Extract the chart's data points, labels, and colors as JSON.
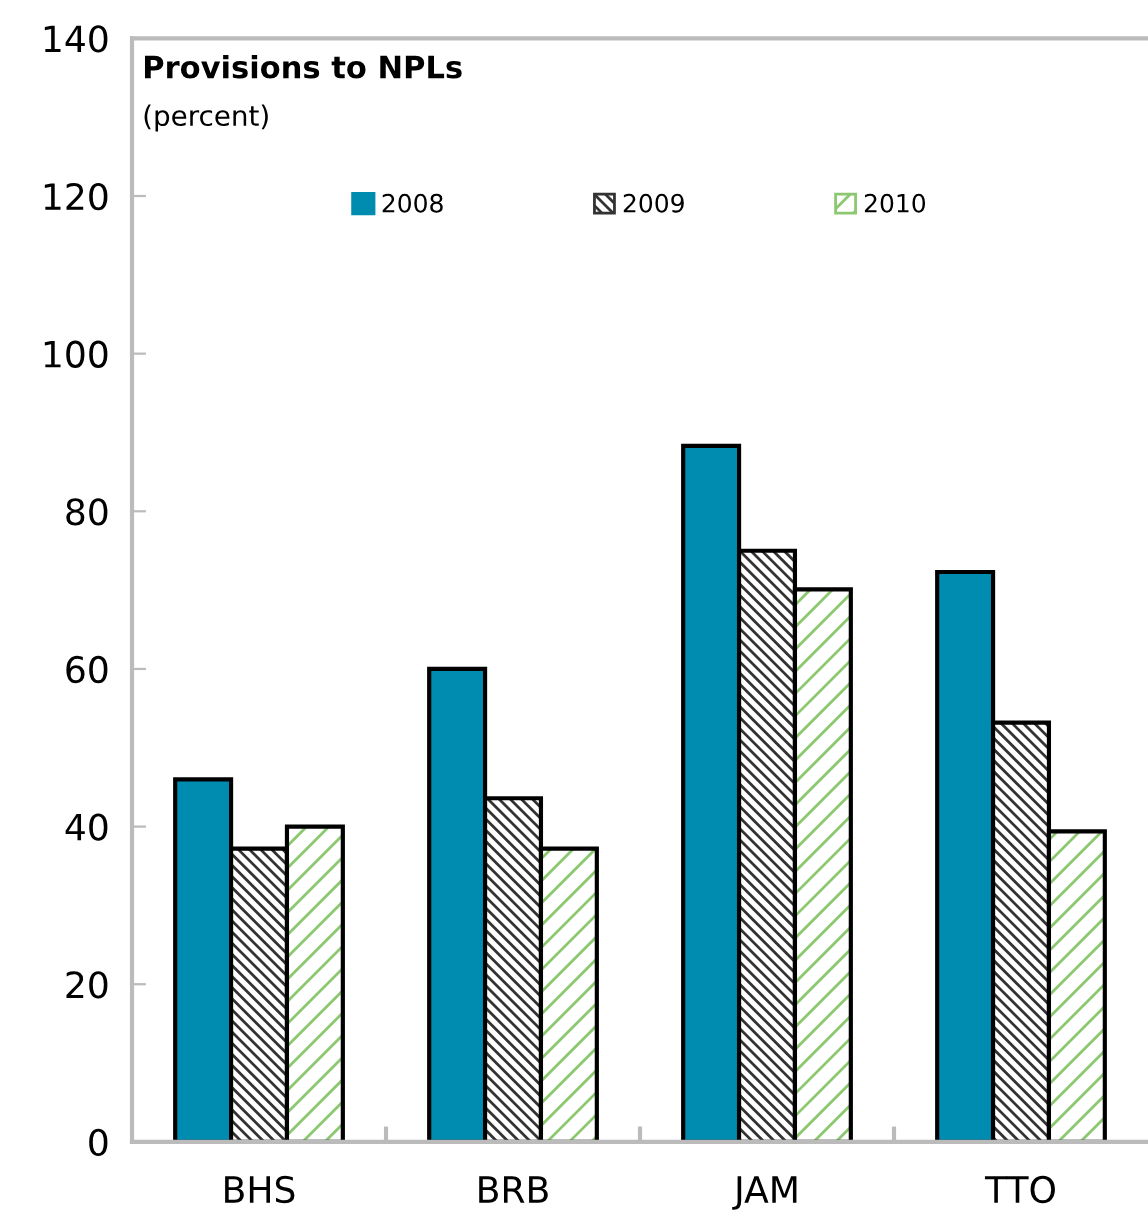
{
  "chart_data": {
    "type": "bar",
    "title": "Provisions to NPLs",
    "subtitle": "(percent)",
    "categories": [
      "BHS",
      "BRB",
      "JAM",
      "TTO"
    ],
    "series": [
      {
        "name": "2008",
        "color": "#008bb0",
        "values": [
          46,
          60,
          88.3,
          72.3
        ]
      },
      {
        "name": "2009",
        "color": "#333333",
        "values": [
          37.2,
          43.6,
          75,
          53.2
        ]
      },
      {
        "name": "2010",
        "color": "#8cc870",
        "values": [
          40,
          37.2,
          70.1,
          39.4
        ]
      }
    ],
    "ylim": [
      0,
      140
    ],
    "yticks": [
      0,
      20,
      40,
      60,
      80,
      100,
      120,
      140
    ],
    "grid": false,
    "legend": "top"
  }
}
